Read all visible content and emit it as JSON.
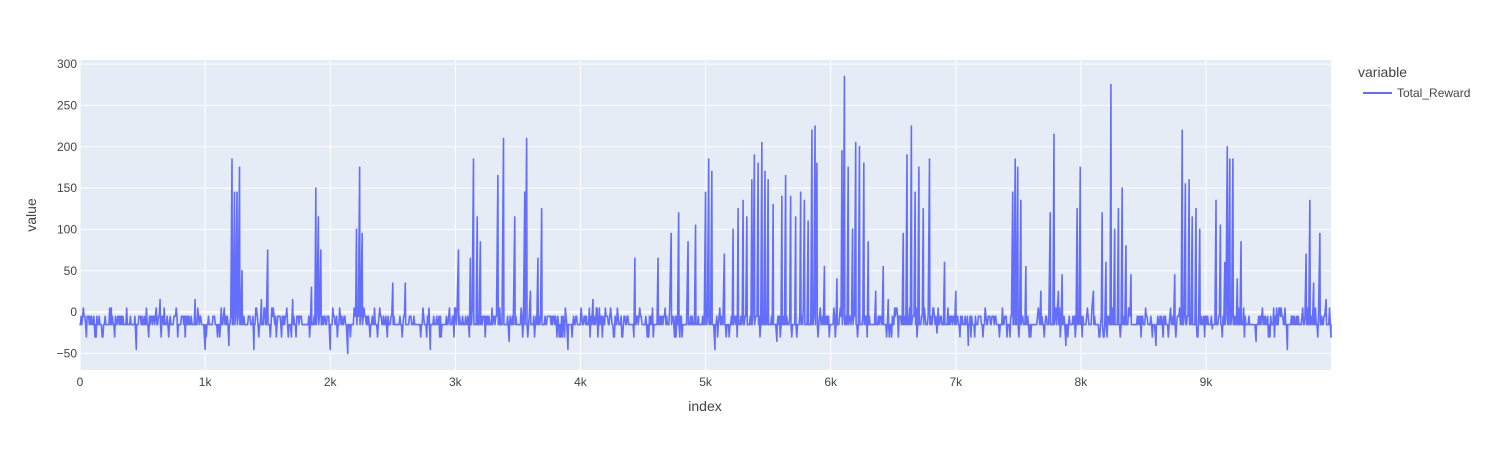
{
  "chart_data": {
    "type": "line",
    "xlabel": "index",
    "ylabel": "value",
    "xlim": [
      0,
      9999
    ],
    "ylim": [
      -70,
      305
    ],
    "x_ticks": [
      0,
      1000,
      2000,
      3000,
      4000,
      5000,
      6000,
      7000,
      8000,
      9000
    ],
    "x_tick_labels": [
      "0",
      "1k",
      "2k",
      "3k",
      "4k",
      "5k",
      "6k",
      "7k",
      "8k",
      "9k"
    ],
    "y_ticks": [
      -50,
      0,
      50,
      100,
      150,
      200,
      250,
      300
    ],
    "y_tick_labels": [
      "−50",
      "0",
      "50",
      "100",
      "150",
      "200",
      "250",
      "300"
    ],
    "grid": true,
    "legend": {
      "title": "variable",
      "placement": "top-right",
      "entries": [
        {
          "label": "Total_Reward",
          "color": "#636efa"
        }
      ]
    },
    "series": [
      {
        "name": "Total_Reward",
        "color": "#636efa",
        "baseline": [
          -15,
          -5
        ],
        "points": [
          {
            "x": 0,
            "y": -15
          },
          {
            "x": 120,
            "y": -30
          },
          {
            "x": 250,
            "y": 5
          },
          {
            "x": 450,
            "y": -45
          },
          {
            "x": 640,
            "y": 15
          },
          {
            "x": 920,
            "y": 15
          },
          {
            "x": 1000,
            "y": -45
          },
          {
            "x": 1190,
            "y": -40
          },
          {
            "x": 1215,
            "y": 185
          },
          {
            "x": 1235,
            "y": 145
          },
          {
            "x": 1255,
            "y": 145
          },
          {
            "x": 1275,
            "y": 175
          },
          {
            "x": 1295,
            "y": 50
          },
          {
            "x": 1390,
            "y": -45
          },
          {
            "x": 1450,
            "y": 15
          },
          {
            "x": 1500,
            "y": 75
          },
          {
            "x": 1700,
            "y": 15
          },
          {
            "x": 1850,
            "y": 30
          },
          {
            "x": 1885,
            "y": 150
          },
          {
            "x": 1905,
            "y": 115
          },
          {
            "x": 1925,
            "y": 75
          },
          {
            "x": 2000,
            "y": -45
          },
          {
            "x": 2140,
            "y": -50
          },
          {
            "x": 2210,
            "y": 100
          },
          {
            "x": 2235,
            "y": 175
          },
          {
            "x": 2255,
            "y": 95
          },
          {
            "x": 2500,
            "y": 35
          },
          {
            "x": 2600,
            "y": 35
          },
          {
            "x": 2800,
            "y": -45
          },
          {
            "x": 3025,
            "y": 75
          },
          {
            "x": 3120,
            "y": 65
          },
          {
            "x": 3145,
            "y": 185
          },
          {
            "x": 3175,
            "y": 115
          },
          {
            "x": 3200,
            "y": 85
          },
          {
            "x": 3340,
            "y": 165
          },
          {
            "x": 3385,
            "y": 210
          },
          {
            "x": 3430,
            "y": -35
          },
          {
            "x": 3475,
            "y": 115
          },
          {
            "x": 3555,
            "y": 145
          },
          {
            "x": 3570,
            "y": 210
          },
          {
            "x": 3600,
            "y": 25
          },
          {
            "x": 3660,
            "y": 65
          },
          {
            "x": 3690,
            "y": 125
          },
          {
            "x": 3900,
            "y": -45
          },
          {
            "x": 4100,
            "y": 15
          },
          {
            "x": 4435,
            "y": 65
          },
          {
            "x": 4620,
            "y": 65
          },
          {
            "x": 4725,
            "y": 95
          },
          {
            "x": 4785,
            "y": 120
          },
          {
            "x": 4860,
            "y": 85
          },
          {
            "x": 4920,
            "y": 105
          },
          {
            "x": 5000,
            "y": 145
          },
          {
            "x": 5025,
            "y": 185
          },
          {
            "x": 5050,
            "y": 170
          },
          {
            "x": 5075,
            "y": -45
          },
          {
            "x": 5150,
            "y": 70
          },
          {
            "x": 5220,
            "y": 100
          },
          {
            "x": 5260,
            "y": 125
          },
          {
            "x": 5300,
            "y": 135
          },
          {
            "x": 5330,
            "y": 115
          },
          {
            "x": 5370,
            "y": 160
          },
          {
            "x": 5390,
            "y": 190
          },
          {
            "x": 5420,
            "y": 180
          },
          {
            "x": 5450,
            "y": 205
          },
          {
            "x": 5475,
            "y": 170
          },
          {
            "x": 5500,
            "y": 160
          },
          {
            "x": 5540,
            "y": 130
          },
          {
            "x": 5570,
            "y": -35
          },
          {
            "x": 5610,
            "y": 140
          },
          {
            "x": 5640,
            "y": 165
          },
          {
            "x": 5680,
            "y": 140
          },
          {
            "x": 5720,
            "y": 115
          },
          {
            "x": 5760,
            "y": 145
          },
          {
            "x": 5790,
            "y": 135
          },
          {
            "x": 5820,
            "y": 110
          },
          {
            "x": 5850,
            "y": 220
          },
          {
            "x": 5875,
            "y": 225
          },
          {
            "x": 5890,
            "y": 180
          },
          {
            "x": 5950,
            "y": 55
          },
          {
            "x": 6050,
            "y": 40
          },
          {
            "x": 6090,
            "y": 195
          },
          {
            "x": 6110,
            "y": 285
          },
          {
            "x": 6140,
            "y": 175
          },
          {
            "x": 6175,
            "y": 100
          },
          {
            "x": 6200,
            "y": 205
          },
          {
            "x": 6230,
            "y": 200
          },
          {
            "x": 6265,
            "y": 180
          },
          {
            "x": 6300,
            "y": 85
          },
          {
            "x": 6360,
            "y": 25
          },
          {
            "x": 6420,
            "y": 55
          },
          {
            "x": 6460,
            "y": 15
          },
          {
            "x": 6580,
            "y": 95
          },
          {
            "x": 6610,
            "y": 190
          },
          {
            "x": 6645,
            "y": 225
          },
          {
            "x": 6675,
            "y": 145
          },
          {
            "x": 6705,
            "y": 175
          },
          {
            "x": 6740,
            "y": 125
          },
          {
            "x": 6790,
            "y": 185
          },
          {
            "x": 6850,
            "y": -25
          },
          {
            "x": 6910,
            "y": 60
          },
          {
            "x": 7000,
            "y": 25
          },
          {
            "x": 7100,
            "y": -40
          },
          {
            "x": 7455,
            "y": 145
          },
          {
            "x": 7475,
            "y": 185
          },
          {
            "x": 7495,
            "y": 175
          },
          {
            "x": 7520,
            "y": 135
          },
          {
            "x": 7560,
            "y": 55
          },
          {
            "x": 7680,
            "y": 25
          },
          {
            "x": 7755,
            "y": 120
          },
          {
            "x": 7785,
            "y": 215
          },
          {
            "x": 7820,
            "y": 25
          },
          {
            "x": 7850,
            "y": 45
          },
          {
            "x": 7880,
            "y": -40
          },
          {
            "x": 7970,
            "y": 125
          },
          {
            "x": 7995,
            "y": 175
          },
          {
            "x": 8100,
            "y": 25
          },
          {
            "x": 8170,
            "y": 120
          },
          {
            "x": 8200,
            "y": 60
          },
          {
            "x": 8240,
            "y": 275
          },
          {
            "x": 8270,
            "y": 100
          },
          {
            "x": 8300,
            "y": 125
          },
          {
            "x": 8330,
            "y": 150
          },
          {
            "x": 8360,
            "y": 80
          },
          {
            "x": 8400,
            "y": 45
          },
          {
            "x": 8600,
            "y": -40
          },
          {
            "x": 8750,
            "y": 45
          },
          {
            "x": 8810,
            "y": 220
          },
          {
            "x": 8835,
            "y": 155
          },
          {
            "x": 8865,
            "y": 160
          },
          {
            "x": 8890,
            "y": 115
          },
          {
            "x": 8920,
            "y": 125
          },
          {
            "x": 8950,
            "y": 100
          },
          {
            "x": 9050,
            "y": -20
          },
          {
            "x": 9080,
            "y": 135
          },
          {
            "x": 9115,
            "y": 105
          },
          {
            "x": 9150,
            "y": 60
          },
          {
            "x": 9170,
            "y": 200
          },
          {
            "x": 9190,
            "y": 185
          },
          {
            "x": 9215,
            "y": 185
          },
          {
            "x": 9250,
            "y": 40
          },
          {
            "x": 9280,
            "y": 85
          },
          {
            "x": 9400,
            "y": -35
          },
          {
            "x": 9650,
            "y": -45
          },
          {
            "x": 9800,
            "y": 70
          },
          {
            "x": 9830,
            "y": 135
          },
          {
            "x": 9860,
            "y": 35
          },
          {
            "x": 9910,
            "y": 95
          },
          {
            "x": 9960,
            "y": 15
          },
          {
            "x": 9999,
            "y": -30
          }
        ]
      }
    ]
  }
}
